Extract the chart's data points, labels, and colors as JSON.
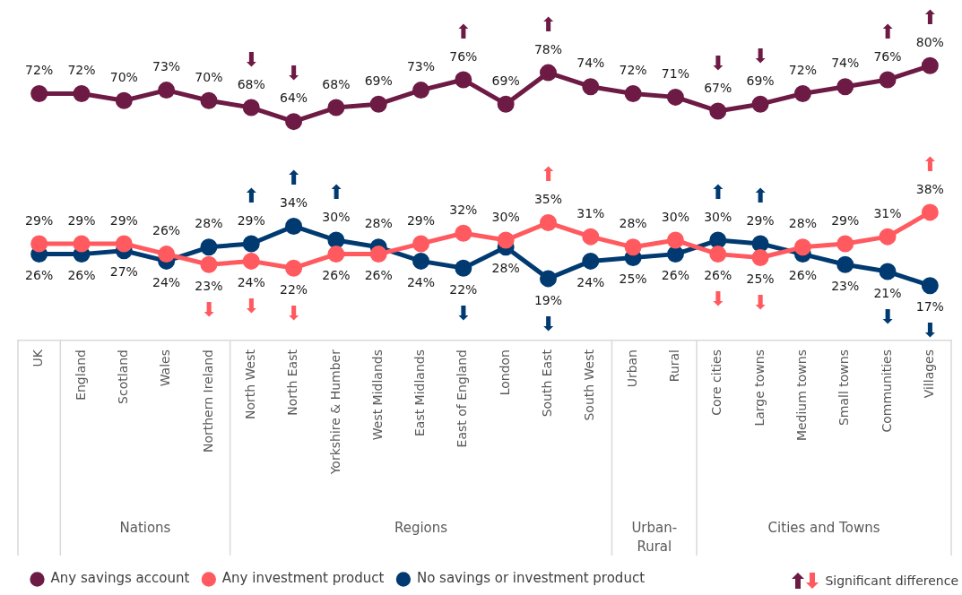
{
  "chart_data": {
    "type": "line",
    "categories": [
      "UK",
      "England",
      "Scotland",
      "Wales",
      "Northern Ireland",
      "North West",
      "North East",
      "Yorkshire & Humber",
      "West Midlands",
      "East Midlands",
      "East of England",
      "London",
      "South East",
      "South West",
      "Urban",
      "Rural",
      "Core cities",
      "Large towns",
      "Medium towns",
      "Small towns",
      "Communities",
      "Villages"
    ],
    "series": [
      {
        "name": "Any savings account",
        "color": "#6d1a45",
        "values": [
          72,
          72,
          70,
          73,
          70,
          68,
          64,
          68,
          69,
          73,
          76,
          69,
          78,
          74,
          72,
          71,
          67,
          69,
          72,
          74,
          76,
          80
        ],
        "value_labels": [
          "72%",
          "72%",
          "70%",
          "73%",
          "70%",
          "68%",
          "64%",
          "68%",
          "69%",
          "73%",
          "76%",
          "69%",
          "78%",
          "74%",
          "72%",
          "71%",
          "67%",
          "69%",
          "72%",
          "74%",
          "76%",
          "80%"
        ]
      },
      {
        "name": "Any investment product",
        "color": "#ff5a5f",
        "values": [
          29,
          29,
          29,
          26,
          23,
          24,
          22,
          26,
          26,
          29,
          32,
          30,
          35,
          31,
          28,
          30,
          26,
          25,
          28,
          29,
          31,
          38
        ],
        "value_labels": [
          "29%",
          "29%",
          "29%",
          "26%",
          "23%",
          "24%",
          "22%",
          "26%",
          "26%",
          "29%",
          "32%",
          "30%",
          "35%",
          "31%",
          "28%",
          "30%",
          "26%",
          "25%",
          "28%",
          "29%",
          "31%",
          "38%"
        ]
      },
      {
        "name": "No savings or investment product",
        "color": "#003a70",
        "values": [
          26,
          26,
          27,
          24,
          28,
          29,
          34,
          30,
          28,
          24,
          22,
          28,
          19,
          24,
          25,
          26,
          30,
          29,
          26,
          23,
          21,
          17
        ],
        "value_labels": [
          "26%",
          "26%",
          "27%",
          "24%",
          "28%",
          "29%",
          "34%",
          "30%",
          "28%",
          "24%",
          "22%",
          "28%",
          "19%",
          "24%",
          "25%",
          "26%",
          "30%",
          "29%",
          "26%",
          "23%",
          "21%",
          "17%"
        ]
      }
    ],
    "marker": "circle",
    "legend": "bottom",
    "grid": false,
    "tick_labels": "x",
    "annotations": [
      "Nations",
      "Regions",
      "Urban-Rural",
      "Cities and Towns",
      "Significant difference",
      {
        "text": "⬇",
        "x": "North West",
        "y": 68
      },
      {
        "text": "⬇",
        "x": "North East",
        "y": 64
      },
      {
        "text": "⬆",
        "x": "East of England",
        "y": 76
      },
      {
        "text": "⬆",
        "x": "South East",
        "y": 78
      },
      {
        "text": "⬇",
        "x": "Core cities",
        "y": 67
      },
      {
        "text": "⬇",
        "x": "Large towns",
        "y": 69
      },
      {
        "text": "⬆",
        "x": "Communities",
        "y": 76
      },
      {
        "text": "⬆",
        "x": "Villages",
        "y": 80
      },
      {
        "text": "⬆",
        "x": "North West",
        "y": 29
      },
      {
        "text": "⬆",
        "x": "North East",
        "y": 34
      },
      {
        "text": "⬆",
        "x": "Yorkshire & Humber",
        "y": 30
      },
      {
        "text": "⬇",
        "x": "East of England",
        "y": 22
      },
      {
        "text": "⬇",
        "x": "South East",
        "y": 19
      },
      {
        "text": "⬆",
        "x": "Core cities",
        "y": 30
      },
      {
        "text": "⬆",
        "x": "Large towns",
        "y": 29
      },
      {
        "text": "⬇",
        "x": "Communities",
        "y": 21
      },
      {
        "text": "⬇",
        "x": "Villages",
        "y": 17
      },
      {
        "text": "⬇",
        "x": "Northern Ireland",
        "y": 23
      },
      {
        "text": "⬇",
        "x": "North West",
        "y": 24
      },
      {
        "text": "⬇",
        "x": "North East",
        "y": 22
      },
      {
        "text": "⬆",
        "x": "South East",
        "y": 35
      },
      {
        "text": "⬇",
        "x": "Core cities",
        "y": 26
      },
      {
        "text": "⬇",
        "x": "Large towns",
        "y": 25
      },
      {
        "text": "⬆",
        "x": "Villages",
        "y": 38
      }
    ]
  }
}
